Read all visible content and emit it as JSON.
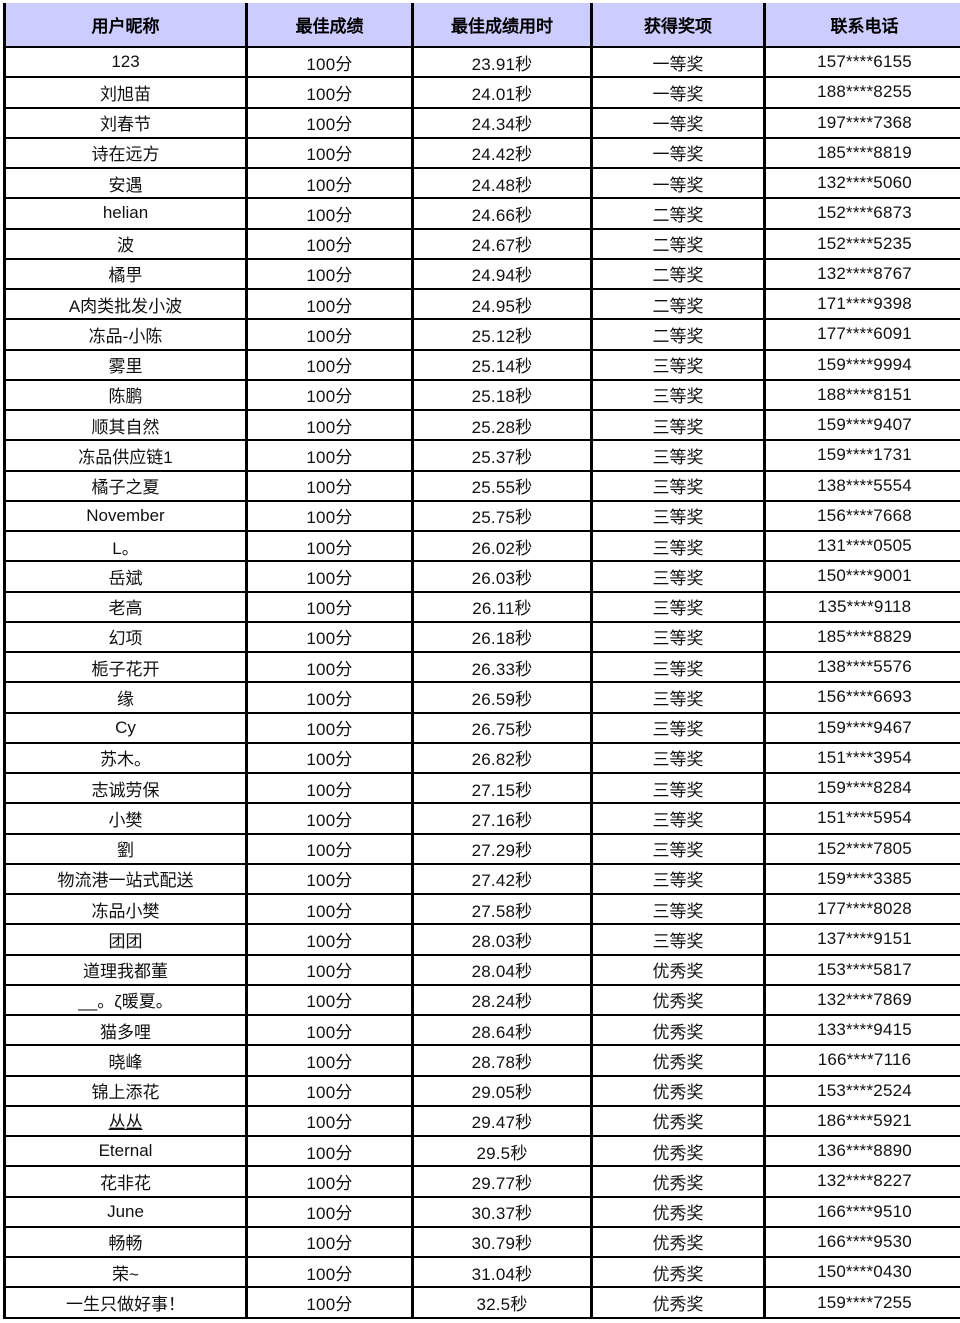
{
  "colors": {
    "header_bg": "#ccccff",
    "border": "#000000",
    "body_text": "#111111",
    "page_bg": "#ffffff"
  },
  "table": {
    "columns": [
      "用户昵称",
      "最佳成绩",
      "最佳成绩用时",
      "获得奖项",
      "联系电话"
    ],
    "rows": [
      {
        "name": "123",
        "score": "100分",
        "time": "23.91秒",
        "award": "一等奖",
        "phone": "157****6155"
      },
      {
        "name": "刘旭苗",
        "score": "100分",
        "time": "24.01秒",
        "award": "一等奖",
        "phone": "188****8255"
      },
      {
        "name": "刘春节",
        "score": "100分",
        "time": "24.34秒",
        "award": "一等奖",
        "phone": "197****7368"
      },
      {
        "name": "诗在远方",
        "score": "100分",
        "time": "24.42秒",
        "award": "一等奖",
        "phone": "185****8819"
      },
      {
        "name": "安遇",
        "score": "100分",
        "time": "24.48秒",
        "award": "一等奖",
        "phone": "132****5060"
      },
      {
        "name": "helian",
        "score": "100分",
        "time": "24.66秒",
        "award": "二等奖",
        "phone": "152****6873"
      },
      {
        "name": "波",
        "score": "100分",
        "time": "24.67秒",
        "award": "二等奖",
        "phone": "152****5235"
      },
      {
        "name": "橘甼",
        "score": "100分",
        "time": "24.94秒",
        "award": "二等奖",
        "phone": "132****8767"
      },
      {
        "name": "A肉类批发小波",
        "score": "100分",
        "time": "24.95秒",
        "award": "二等奖",
        "phone": "171****9398"
      },
      {
        "name": "冻品-小陈",
        "score": "100分",
        "time": "25.12秒",
        "award": "二等奖",
        "phone": "177****6091"
      },
      {
        "name": "雾里",
        "score": "100分",
        "time": "25.14秒",
        "award": "三等奖",
        "phone": "159****9994"
      },
      {
        "name": "陈鹏",
        "score": "100分",
        "time": "25.18秒",
        "award": "三等奖",
        "phone": "188****8151"
      },
      {
        "name": "顺其自然",
        "score": "100分",
        "time": "25.28秒",
        "award": "三等奖",
        "phone": "159****9407"
      },
      {
        "name": "冻品供应链1",
        "score": "100分",
        "time": "25.37秒",
        "award": "三等奖",
        "phone": "159****1731"
      },
      {
        "name": "橘子之夏",
        "score": "100分",
        "time": "25.55秒",
        "award": "三等奖",
        "phone": "138****5554"
      },
      {
        "name": "November",
        "score": "100分",
        "time": "25.75秒",
        "award": "三等奖",
        "phone": "156****7668"
      },
      {
        "name": "L。",
        "score": "100分",
        "time": "26.02秒",
        "award": "三等奖",
        "phone": "131****0505"
      },
      {
        "name": "岳斌",
        "score": "100分",
        "time": "26.03秒",
        "award": "三等奖",
        "phone": "150****9001"
      },
      {
        "name": "老高",
        "score": "100分",
        "time": "26.11秒",
        "award": "三等奖",
        "phone": "135****9118"
      },
      {
        "name": "幻项",
        "score": "100分",
        "time": "26.18秒",
        "award": "三等奖",
        "phone": "185****8829"
      },
      {
        "name": "栀子花开",
        "score": "100分",
        "time": "26.33秒",
        "award": "三等奖",
        "phone": "138****5576"
      },
      {
        "name": "缘",
        "score": "100分",
        "time": "26.59秒",
        "award": "三等奖",
        "phone": "156****6693"
      },
      {
        "name": "Cy",
        "score": "100分",
        "time": "26.75秒",
        "award": "三等奖",
        "phone": "159****9467"
      },
      {
        "name": "苏木。",
        "score": "100分",
        "time": "26.82秒",
        "award": "三等奖",
        "phone": "151****3954"
      },
      {
        "name": "志诚劳保",
        "score": "100分",
        "time": "27.15秒",
        "award": "三等奖",
        "phone": "159****8284"
      },
      {
        "name": "小樊",
        "score": "100分",
        "time": "27.16秒",
        "award": "三等奖",
        "phone": "151****5954"
      },
      {
        "name": "劉",
        "score": "100分",
        "time": "27.29秒",
        "award": "三等奖",
        "phone": "152****7805"
      },
      {
        "name": "物流港一站式配送",
        "score": "100分",
        "time": "27.42秒",
        "award": "三等奖",
        "phone": "159****3385"
      },
      {
        "name": "冻品小樊",
        "score": "100分",
        "time": "27.58秒",
        "award": "三等奖",
        "phone": "177****8028"
      },
      {
        "name": "团团",
        "score": "100分",
        "time": "28.03秒",
        "award": "三等奖",
        "phone": "137****9151"
      },
      {
        "name": "道理我都董",
        "score": "100分",
        "time": "28.04秒",
        "award": "优秀奖",
        "phone": "153****5817"
      },
      {
        "name": "__。ζ暖夏。",
        "score": "100分",
        "time": "28.24秒",
        "award": "优秀奖",
        "phone": "132****7869"
      },
      {
        "name": "猫多哩",
        "score": "100分",
        "time": "28.64秒",
        "award": "优秀奖",
        "phone": "133****9415"
      },
      {
        "name": "晓峰",
        "score": "100分",
        "time": "28.78秒",
        "award": "优秀奖",
        "phone": "166****7116"
      },
      {
        "name": "锦上添花",
        "score": "100分",
        "time": "29.05秒",
        "award": "优秀奖",
        "phone": "153****2524"
      },
      {
        "name": "丛丛",
        "underline": true,
        "score": "100分",
        "time": "29.47秒",
        "award": "优秀奖",
        "phone": "186****5921"
      },
      {
        "name": "Eternal",
        "score": "100分",
        "time": "29.5秒",
        "award": "优秀奖",
        "phone": "136****8890"
      },
      {
        "name": "花非花",
        "score": "100分",
        "time": "29.77秒",
        "award": "优秀奖",
        "phone": "132****8227"
      },
      {
        "name": "June",
        "score": "100分",
        "time": "30.37秒",
        "award": "优秀奖",
        "phone": "166****9510"
      },
      {
        "name": "畅畅",
        "score": "100分",
        "time": "30.79秒",
        "award": "优秀奖",
        "phone": "166****9530"
      },
      {
        "name": "荣~",
        "score": "100分",
        "time": "31.04秒",
        "award": "优秀奖",
        "phone": "150****0430"
      },
      {
        "name": "一生只做好事！",
        "score": "100分",
        "time": "32.5秒",
        "award": "优秀奖",
        "phone": "159****7255"
      }
    ]
  }
}
